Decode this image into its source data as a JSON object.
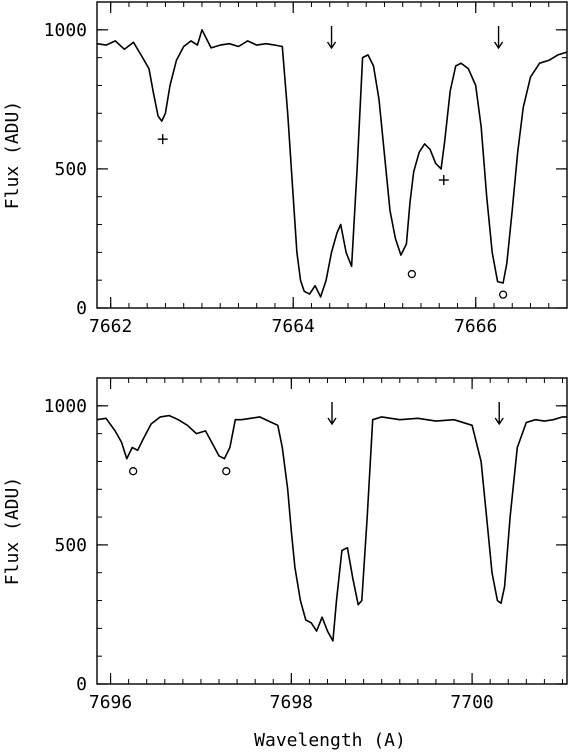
{
  "figure": {
    "xlabel": "Wavelength (A)",
    "ylabel": "Flux (ADU)"
  },
  "chart_data": [
    {
      "type": "line",
      "title": "",
      "xlabel": "",
      "ylabel": "Flux (ADU)",
      "xlim": [
        7661.85,
        7667.0
      ],
      "ylim": [
        0,
        1100
      ],
      "xticks": [
        7662,
        7664,
        7666
      ],
      "yticks": [
        0,
        500,
        1000
      ],
      "grid": false,
      "legend": "none",
      "series": [
        {
          "x": [
            7661.85,
            7661.95,
            7662.05,
            7662.15,
            7662.25,
            7662.35,
            7662.42,
            7662.47,
            7662.52,
            7662.56,
            7662.6,
            7662.65,
            7662.72,
            7662.8,
            7662.88,
            7662.95,
            7663.0,
            7663.1,
            7663.2,
            7663.3,
            7663.4,
            7663.5,
            7663.6,
            7663.7,
            7663.8,
            7663.88,
            7663.94,
            7664.0,
            7664.04,
            7664.08,
            7664.12,
            7664.18,
            7664.24,
            7664.3,
            7664.36,
            7664.42,
            7664.48,
            7664.52,
            7664.58,
            7664.64,
            7664.7,
            7664.76,
            7664.82,
            7664.88,
            7664.94,
            7665.0,
            7665.06,
            7665.12,
            7665.18,
            7665.24,
            7665.28,
            7665.32,
            7665.38,
            7665.44,
            7665.5,
            7665.56,
            7665.62,
            7665.66,
            7665.72,
            7665.78,
            7665.84,
            7665.92,
            7666.0,
            7666.06,
            7666.12,
            7666.18,
            7666.24,
            7666.3,
            7666.34,
            7666.4,
            7666.46,
            7666.52,
            7666.6,
            7666.7,
            7666.8,
            7666.9,
            7667.0
          ],
          "y": [
            950,
            945,
            960,
            930,
            955,
            900,
            860,
            770,
            690,
            672,
            700,
            800,
            890,
            940,
            960,
            945,
            1000,
            935,
            945,
            950,
            940,
            960,
            945,
            950,
            945,
            940,
            700,
            400,
            200,
            100,
            60,
            50,
            80,
            40,
            100,
            200,
            270,
            300,
            200,
            150,
            500,
            900,
            910,
            870,
            750,
            550,
            350,
            250,
            190,
            230,
            380,
            490,
            560,
            590,
            570,
            520,
            500,
            600,
            780,
            870,
            880,
            860,
            800,
            650,
            400,
            200,
            95,
            90,
            160,
            350,
            560,
            720,
            830,
            880,
            890,
            910,
            920
          ]
        }
      ],
      "annotations": {
        "arrow_x": [
          7664.42,
          7666.25
        ],
        "plus_markers": [
          {
            "x": 7662.57,
            "y": 607
          },
          {
            "x": 7665.65,
            "y": 460
          }
        ],
        "circle_markers": [
          {
            "x": 7665.3,
            "y": 122
          },
          {
            "x": 7666.3,
            "y": 48
          }
        ]
      }
    },
    {
      "type": "line",
      "title": "",
      "xlabel": "Wavelength (A)",
      "ylabel": "Flux (ADU)",
      "xlim": [
        7695.85,
        7701.05
      ],
      "ylim": [
        0,
        1100
      ],
      "xticks": [
        7696,
        7698,
        7700
      ],
      "yticks": [
        0,
        500,
        1000
      ],
      "grid": false,
      "legend": "none",
      "series": [
        {
          "x": [
            7695.85,
            7695.95,
            7696.05,
            7696.12,
            7696.18,
            7696.24,
            7696.3,
            7696.36,
            7696.45,
            7696.55,
            7696.65,
            7696.75,
            7696.85,
            7696.95,
            7697.05,
            7697.15,
            7697.2,
            7697.26,
            7697.32,
            7697.38,
            7697.45,
            7697.55,
            7697.65,
            7697.75,
            7697.85,
            7697.9,
            7697.96,
            7698.0,
            7698.04,
            7698.1,
            7698.16,
            7698.22,
            7698.28,
            7698.34,
            7698.4,
            7698.46,
            7698.5,
            7698.56,
            7698.62,
            7698.68,
            7698.74,
            7698.78,
            7698.84,
            7698.9,
            7699.0,
            7699.2,
            7699.4,
            7699.6,
            7699.8,
            7700.0,
            7700.1,
            7700.16,
            7700.22,
            7700.28,
            7700.32,
            7700.36,
            7700.42,
            7700.5,
            7700.6,
            7700.7,
            7700.8,
            7700.9,
            7701.0,
            7701.05
          ],
          "y": [
            950,
            955,
            910,
            870,
            810,
            850,
            840,
            880,
            935,
            960,
            965,
            950,
            930,
            900,
            910,
            850,
            820,
            810,
            850,
            950,
            950,
            955,
            960,
            945,
            930,
            850,
            700,
            550,
            420,
            300,
            230,
            220,
            190,
            240,
            190,
            155,
            300,
            480,
            490,
            380,
            285,
            300,
            600,
            950,
            960,
            950,
            955,
            945,
            950,
            930,
            800,
            600,
            400,
            300,
            290,
            350,
            600,
            850,
            940,
            950,
            945,
            950,
            960,
            960
          ]
        }
      ],
      "annotations": {
        "arrow_x": [
          7698.45,
          7700.3
        ],
        "circle_markers": [
          {
            "x": 7696.25,
            "y": 765
          },
          {
            "x": 7697.28,
            "y": 765
          }
        ]
      }
    }
  ]
}
